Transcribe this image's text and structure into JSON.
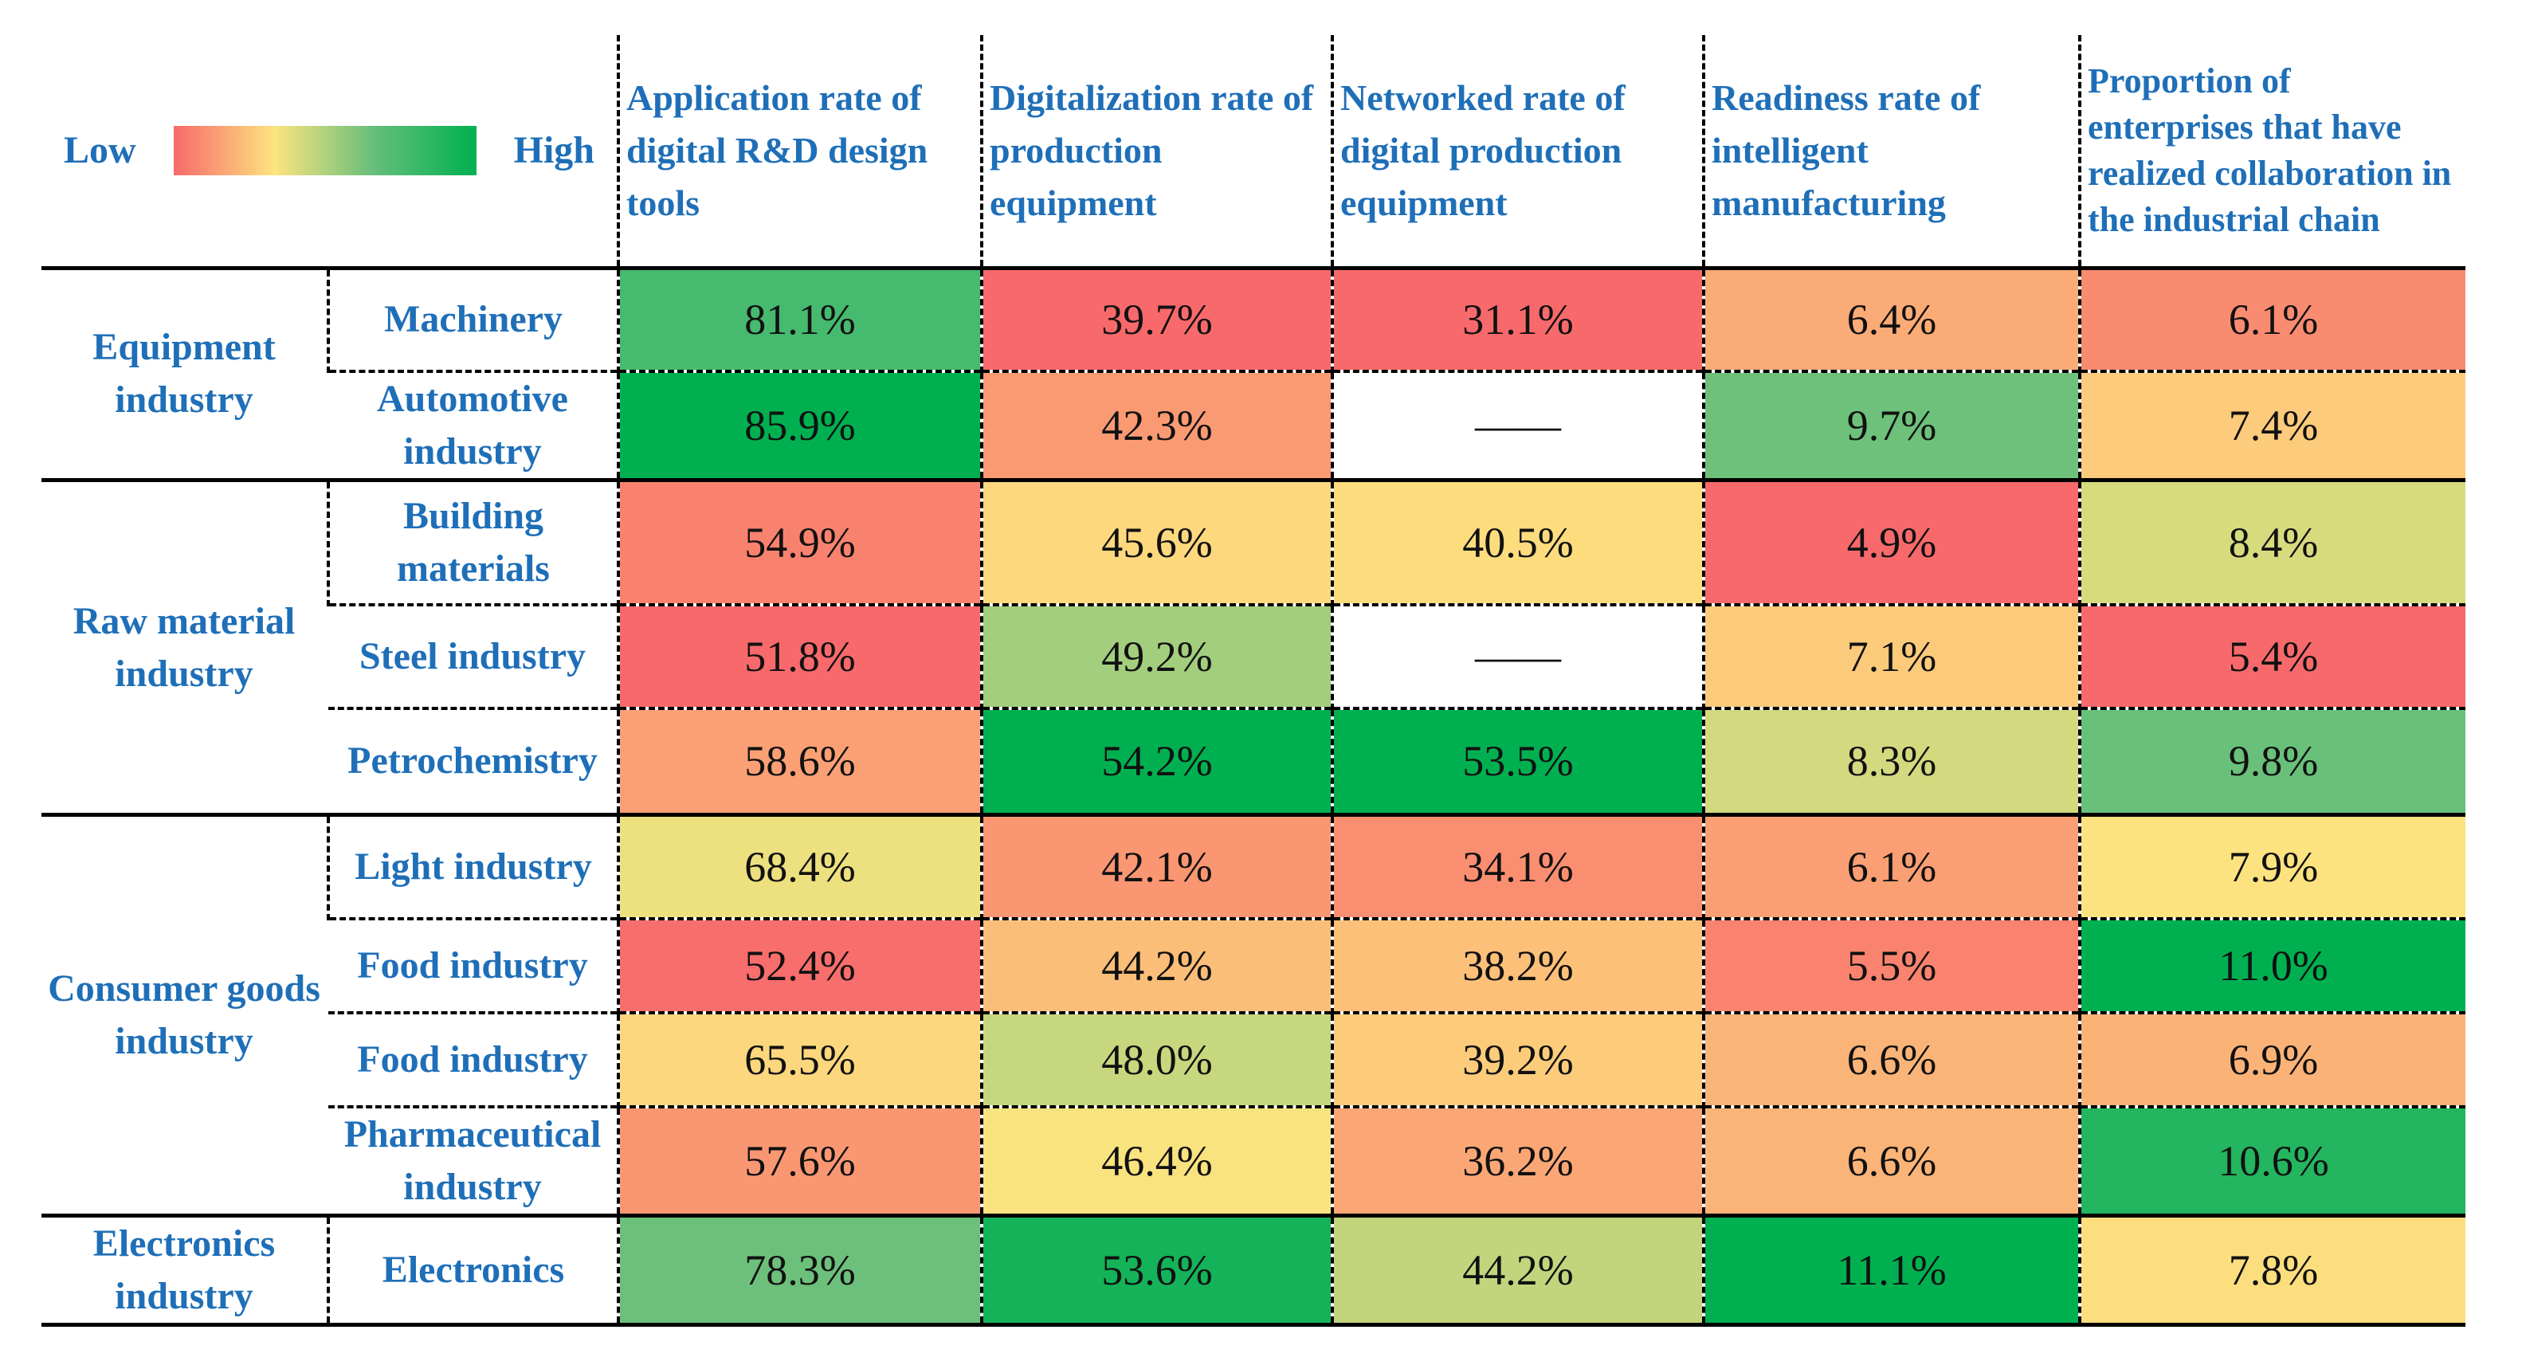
{
  "chart_data": {
    "type": "heatmap",
    "legend": {
      "low_label": "Low",
      "high_label": "High"
    },
    "columns": [
      "Application rate of digital R&D design tools",
      "Digitalization rate of production equipment",
      "Networked rate of digital production equipment",
      "Readiness rate of intelligent manufacturing",
      "Proportion of enterprises that have realized collaboration in the industrial chain"
    ],
    "groups": [
      {
        "name": "Equipment industry",
        "rows": [
          {
            "name": "Machinery",
            "values": [
              "81.1%",
              "39.7%",
              "31.1%",
              "6.4%",
              "6.1%"
            ]
          },
          {
            "name": "Automotive industry",
            "values": [
              "85.9%",
              "42.3%",
              "——",
              "9.7%",
              "7.4%"
            ]
          }
        ]
      },
      {
        "name": "Raw material industry",
        "rows": [
          {
            "name": "Building materials",
            "values": [
              "54.9%",
              "45.6%",
              "40.5%",
              "4.9%",
              "8.4%"
            ]
          },
          {
            "name": "Steel industry",
            "values": [
              "51.8%",
              "49.2%",
              "——",
              "7.1%",
              "5.4%"
            ]
          },
          {
            "name": "Petrochemistry",
            "values": [
              "58.6%",
              "54.2%",
              "53.5%",
              "8.3%",
              "9.8%"
            ]
          }
        ]
      },
      {
        "name": "Consumer goods industry",
        "rows": [
          {
            "name": "Light industry",
            "values": [
              "68.4%",
              "42.1%",
              "34.1%",
              "6.1%",
              "7.9%"
            ]
          },
          {
            "name": "Food industry",
            "values": [
              "52.4%",
              "44.2%",
              "38.2%",
              "5.5%",
              "11.0%"
            ]
          },
          {
            "name": "Food industry",
            "values": [
              "65.5%",
              "48.0%",
              "39.2%",
              "6.6%",
              "6.9%"
            ]
          },
          {
            "name": "Pharmaceutical industry",
            "values": [
              "57.6%",
              "46.4%",
              "36.2%",
              "6.6%",
              "10.6%"
            ]
          }
        ]
      },
      {
        "name": "Electronics industry",
        "rows": [
          {
            "name": "Electronics",
            "values": [
              "78.3%",
              "53.6%",
              "44.2%",
              "11.1%",
              "7.8%"
            ]
          }
        ]
      }
    ],
    "colors": {
      "low": "#f8696b",
      "mid": "#fde47f",
      "high": "#00b050",
      "missing": "#ffffff",
      "label": "#1f6fb8"
    }
  }
}
